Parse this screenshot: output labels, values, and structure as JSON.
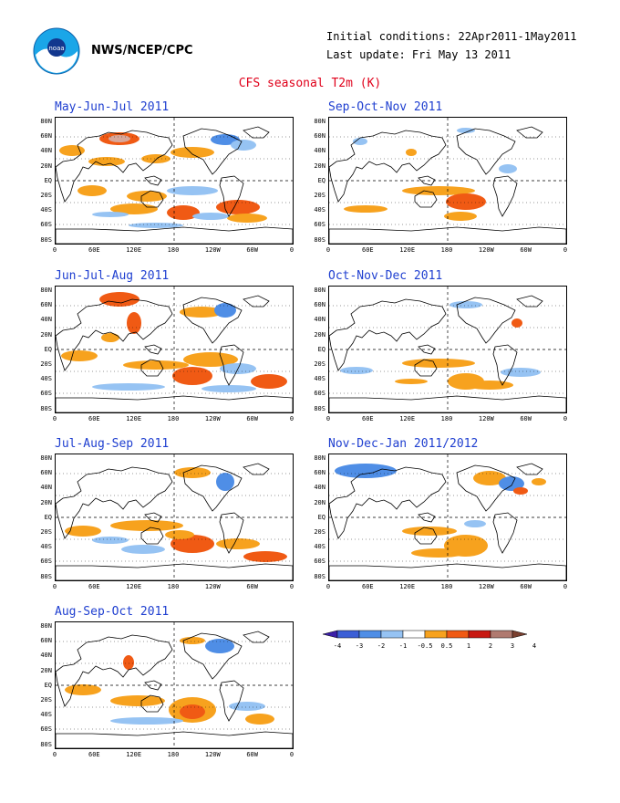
{
  "header": {
    "org": "NWS/NCEP/CPC",
    "initial_conditions": "Initial conditions: 22Apr2011-1May2011",
    "last_update": "Last update: Fri May 13 2011",
    "main_title": "CFS seasonal T2m (K)",
    "logo": "noaa-logo"
  },
  "map": {
    "lat_labels": [
      "80N",
      "60N",
      "40N",
      "20N",
      "EQ",
      "20S",
      "40S",
      "60S",
      "80S"
    ],
    "lon_labels": [
      "0",
      "60E",
      "120E",
      "180",
      "120W",
      "60W",
      "0"
    ]
  },
  "panels": [
    {
      "title": "May-Jun-Jul 2011"
    },
    {
      "title": "Sep-Oct-Nov 2011"
    },
    {
      "title": "Jun-Jul-Aug 2011"
    },
    {
      "title": "Oct-Nov-Dec 2011"
    },
    {
      "title": "Jul-Aug-Sep 2011"
    },
    {
      "title": "Nov-Dec-Jan 2011/2012"
    },
    {
      "title": "Aug-Sep-Oct 2011"
    }
  ],
  "colorbar": {
    "labels": [
      "-4",
      "-3",
      "-2",
      "-1",
      "-0.5",
      "0.5",
      "1",
      "2",
      "3",
      "4"
    ],
    "colors": [
      "#3b1fa8",
      "#3c5fd6",
      "#4f8ee6",
      "#96c3f3",
      "#ffffff",
      "#f7a21e",
      "#f05a14",
      "#c81912",
      "#b07a70",
      "#7a4030"
    ]
  },
  "colors": {
    "warm1": "#f7a21e",
    "warm2": "#f05a14",
    "warm3": "#c81912",
    "cool1": "#96c3f3",
    "cool2": "#4f8ee6",
    "title_red": "#e0001a",
    "title_blue": "#1f3fd0"
  }
}
